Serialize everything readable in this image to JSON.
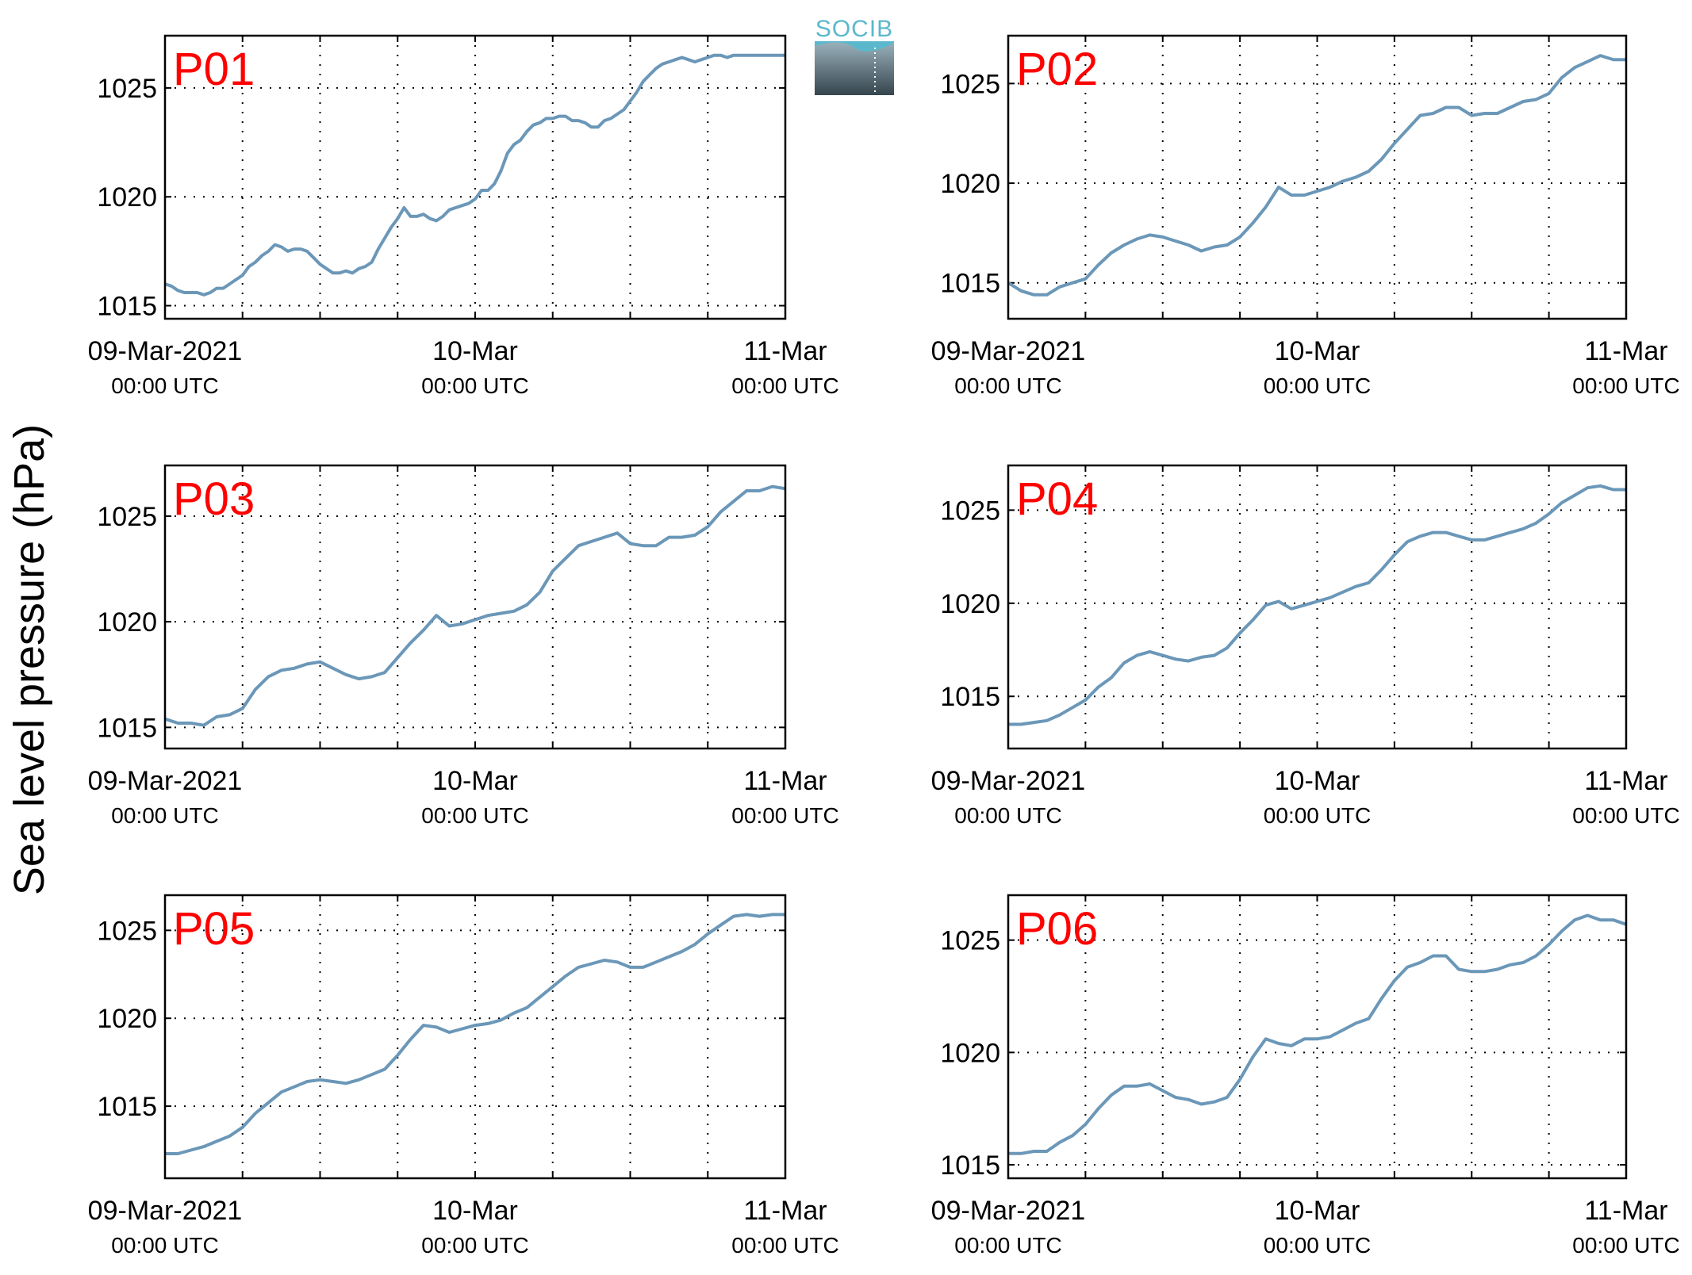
{
  "figure": {
    "ylabel": "Sea level pressure (hPa)",
    "logo_text": "SOCIB",
    "colors": {
      "line": "#6b97b8",
      "panel_label": "#ff0000",
      "grid": "#000000"
    }
  },
  "chart_data": [
    {
      "type": "line",
      "title": "P01",
      "x_ticks": [
        {
          "date": "09-Mar-2021",
          "time": "00:00 UTC"
        },
        {
          "date": "10-Mar",
          "time": "00:00 UTC"
        },
        {
          "date": "11-Mar",
          "time": "00:00 UTC"
        }
      ],
      "xlim": [
        0,
        48
      ],
      "ylim": [
        1014.4,
        1027.4
      ],
      "yticks": [
        1015,
        1020,
        1025
      ],
      "grid": true,
      "series": [
        {
          "x": [
            0,
            0.5,
            1,
            1.5,
            2,
            2.5,
            3,
            3.5,
            4,
            4.5,
            5,
            5.5,
            6,
            6.5,
            7,
            7.5,
            8,
            8.5,
            9,
            9.5,
            10,
            10.5,
            11,
            11.5,
            12,
            12.5,
            13,
            13.5,
            14,
            14.5,
            15,
            15.5,
            16,
            16.5,
            17,
            17.5,
            18,
            18.5,
            19,
            19.5,
            20,
            20.5,
            21,
            21.5,
            22,
            22.5,
            23,
            23.5,
            24,
            24.5,
            25,
            25.5,
            26,
            26.5,
            27,
            27.5,
            28,
            28.5,
            29,
            29.5,
            30,
            30.5,
            31,
            31.5,
            32,
            32.5,
            33,
            33.5,
            34,
            34.5,
            35,
            35.5,
            36,
            36.5,
            37,
            37.5,
            38,
            38.5,
            39,
            39.5,
            40,
            40.5,
            41,
            41.5,
            42,
            42.5,
            43,
            43.5,
            44,
            44.5,
            45,
            45.5,
            46,
            46.5,
            47,
            47.5,
            48
          ],
          "values": [
            1016.0,
            1015.9,
            1015.7,
            1015.6,
            1015.6,
            1015.6,
            1015.5,
            1015.6,
            1015.8,
            1015.8,
            1016.0,
            1016.2,
            1016.4,
            1016.8,
            1017.0,
            1017.3,
            1017.5,
            1017.8,
            1017.7,
            1017.5,
            1017.6,
            1017.6,
            1017.5,
            1017.2,
            1016.9,
            1016.7,
            1016.5,
            1016.5,
            1016.6,
            1016.5,
            1016.7,
            1016.8,
            1017.0,
            1017.6,
            1018.1,
            1018.6,
            1019.0,
            1019.5,
            1019.1,
            1019.1,
            1019.2,
            1019.0,
            1018.9,
            1019.1,
            1019.4,
            1019.5,
            1019.6,
            1019.7,
            1019.9,
            1020.3,
            1020.3,
            1020.6,
            1021.2,
            1022.0,
            1022.4,
            1022.6,
            1023.0,
            1023.3,
            1023.4,
            1023.6,
            1023.6,
            1023.7,
            1023.7,
            1023.5,
            1023.5,
            1023.4,
            1023.2,
            1023.2,
            1023.5,
            1023.6,
            1023.8,
            1024.0,
            1024.4,
            1024.8,
            1025.3,
            1025.6,
            1025.9,
            1026.1,
            1026.2,
            1026.3,
            1026.4,
            1026.3,
            1026.2,
            1026.3,
            1026.4,
            1026.5,
            1026.5,
            1026.4,
            1026.5,
            1026.5,
            1026.5,
            1026.5,
            1026.5,
            1026.5,
            1026.5,
            1026.5,
            1026.5
          ]
        }
      ]
    },
    {
      "type": "line",
      "title": "P02",
      "x_ticks": [
        {
          "date": "09-Mar-2021",
          "time": "00:00 UTC"
        },
        {
          "date": "10-Mar",
          "time": "00:00 UTC"
        },
        {
          "date": "11-Mar",
          "time": "00:00 UTC"
        }
      ],
      "xlim": [
        0,
        48
      ],
      "ylim": [
        1013.2,
        1027.4
      ],
      "yticks": [
        1015,
        1020,
        1025
      ],
      "grid": true,
      "series": [
        {
          "x": [
            0,
            1,
            2,
            3,
            4,
            5,
            6,
            7,
            8,
            9,
            10,
            11,
            12,
            13,
            14,
            15,
            16,
            17,
            18,
            19,
            20,
            21,
            22,
            23,
            24,
            25,
            26,
            27,
            28,
            29,
            30,
            31,
            32,
            33,
            34,
            35,
            36,
            37,
            38,
            39,
            40,
            41,
            42,
            43,
            44,
            45,
            46,
            47,
            48
          ],
          "values": [
            1015.0,
            1014.6,
            1014.4,
            1014.4,
            1014.8,
            1015.0,
            1015.2,
            1015.9,
            1016.5,
            1016.9,
            1017.2,
            1017.4,
            1017.3,
            1017.1,
            1016.9,
            1016.6,
            1016.8,
            1016.9,
            1017.3,
            1018.0,
            1018.8,
            1019.8,
            1019.4,
            1019.4,
            1019.6,
            1019.8,
            1020.1,
            1020.3,
            1020.6,
            1021.2,
            1022.0,
            1022.7,
            1023.4,
            1023.5,
            1023.8,
            1023.8,
            1023.4,
            1023.5,
            1023.5,
            1023.8,
            1024.1,
            1024.2,
            1024.5,
            1025.3,
            1025.8,
            1026.1,
            1026.4,
            1026.2,
            1026.2
          ]
        }
      ]
    },
    {
      "type": "line",
      "title": "P03",
      "x_ticks": [
        {
          "date": "09-Mar-2021",
          "time": "00:00 UTC"
        },
        {
          "date": "10-Mar",
          "time": "00:00 UTC"
        },
        {
          "date": "11-Mar",
          "time": "00:00 UTC"
        }
      ],
      "xlim": [
        0,
        48
      ],
      "ylim": [
        1014.0,
        1027.4
      ],
      "yticks": [
        1015,
        1020,
        1025
      ],
      "grid": true,
      "series": [
        {
          "x": [
            0,
            1,
            2,
            3,
            4,
            5,
            6,
            7,
            8,
            9,
            10,
            11,
            12,
            13,
            14,
            15,
            16,
            17,
            18,
            19,
            20,
            21,
            22,
            23,
            24,
            25,
            26,
            27,
            28,
            29,
            30,
            31,
            32,
            33,
            34,
            35,
            36,
            37,
            38,
            39,
            40,
            41,
            42,
            43,
            44,
            45,
            46,
            47,
            48
          ],
          "values": [
            1015.4,
            1015.2,
            1015.2,
            1015.1,
            1015.5,
            1015.6,
            1015.9,
            1016.8,
            1017.4,
            1017.7,
            1017.8,
            1018.0,
            1018.1,
            1017.8,
            1017.5,
            1017.3,
            1017.4,
            1017.6,
            1018.3,
            1019.0,
            1019.6,
            1020.3,
            1019.8,
            1019.9,
            1020.1,
            1020.3,
            1020.4,
            1020.5,
            1020.8,
            1021.4,
            1022.4,
            1023.0,
            1023.6,
            1023.8,
            1024.0,
            1024.2,
            1023.7,
            1023.6,
            1023.6,
            1024.0,
            1024.0,
            1024.1,
            1024.5,
            1025.2,
            1025.7,
            1026.2,
            1026.2,
            1026.4,
            1026.3
          ]
        }
      ]
    },
    {
      "type": "line",
      "title": "P04",
      "x_ticks": [
        {
          "date": "09-Mar-2021",
          "time": "00:00 UTC"
        },
        {
          "date": "10-Mar",
          "time": "00:00 UTC"
        },
        {
          "date": "11-Mar",
          "time": "00:00 UTC"
        }
      ],
      "xlim": [
        0,
        48
      ],
      "ylim": [
        1012.2,
        1027.4
      ],
      "yticks": [
        1015,
        1020,
        1025
      ],
      "grid": true,
      "series": [
        {
          "x": [
            0,
            1,
            2,
            3,
            4,
            5,
            6,
            7,
            8,
            9,
            10,
            11,
            12,
            13,
            14,
            15,
            16,
            17,
            18,
            19,
            20,
            21,
            22,
            23,
            24,
            25,
            26,
            27,
            28,
            29,
            30,
            31,
            32,
            33,
            34,
            35,
            36,
            37,
            38,
            39,
            40,
            41,
            42,
            43,
            44,
            45,
            46,
            47,
            48
          ],
          "values": [
            1013.5,
            1013.5,
            1013.6,
            1013.7,
            1014.0,
            1014.4,
            1014.8,
            1015.5,
            1016.0,
            1016.8,
            1017.2,
            1017.4,
            1017.2,
            1017.0,
            1016.9,
            1017.1,
            1017.2,
            1017.6,
            1018.4,
            1019.1,
            1019.9,
            1020.1,
            1019.7,
            1019.9,
            1020.1,
            1020.3,
            1020.6,
            1020.9,
            1021.1,
            1021.8,
            1022.6,
            1023.3,
            1023.6,
            1023.8,
            1023.8,
            1023.6,
            1023.4,
            1023.4,
            1023.6,
            1023.8,
            1024.0,
            1024.3,
            1024.8,
            1025.4,
            1025.8,
            1026.2,
            1026.3,
            1026.1,
            1026.1
          ]
        }
      ]
    },
    {
      "type": "line",
      "title": "P05",
      "x_ticks": [
        {
          "date": "09-Mar-2021",
          "time": "00:00 UTC"
        },
        {
          "date": "10-Mar",
          "time": "00:00 UTC"
        },
        {
          "date": "11-Mar",
          "time": "00:00 UTC"
        }
      ],
      "xlim": [
        0,
        48
      ],
      "ylim": [
        1010.9,
        1027.0
      ],
      "yticks": [
        1015,
        1020,
        1025
      ],
      "grid": true,
      "series": [
        {
          "x": [
            0,
            1,
            2,
            3,
            4,
            5,
            6,
            7,
            8,
            9,
            10,
            11,
            12,
            13,
            14,
            15,
            16,
            17,
            18,
            19,
            20,
            21,
            22,
            23,
            24,
            25,
            26,
            27,
            28,
            29,
            30,
            31,
            32,
            33,
            34,
            35,
            36,
            37,
            38,
            39,
            40,
            41,
            42,
            43,
            44,
            45,
            46,
            47,
            48
          ],
          "values": [
            1012.3,
            1012.3,
            1012.5,
            1012.7,
            1013.0,
            1013.3,
            1013.8,
            1014.6,
            1015.2,
            1015.8,
            1016.1,
            1016.4,
            1016.5,
            1016.4,
            1016.3,
            1016.5,
            1016.8,
            1017.1,
            1017.9,
            1018.8,
            1019.6,
            1019.5,
            1019.2,
            1019.4,
            1019.6,
            1019.7,
            1019.9,
            1020.3,
            1020.6,
            1021.2,
            1021.8,
            1022.4,
            1022.9,
            1023.1,
            1023.3,
            1023.2,
            1022.9,
            1022.9,
            1023.2,
            1023.5,
            1023.8,
            1024.2,
            1024.8,
            1025.3,
            1025.8,
            1025.9,
            1025.8,
            1025.9,
            1025.9
          ]
        }
      ]
    },
    {
      "type": "line",
      "title": "P06",
      "x_ticks": [
        {
          "date": "09-Mar-2021",
          "time": "00:00 UTC"
        },
        {
          "date": "10-Mar",
          "time": "00:00 UTC"
        },
        {
          "date": "11-Mar",
          "time": "00:00 UTC"
        }
      ],
      "xlim": [
        0,
        48
      ],
      "ylim": [
        1014.4,
        1027.0
      ],
      "yticks": [
        1015,
        1020,
        1025
      ],
      "grid": true,
      "series": [
        {
          "x": [
            0,
            1,
            2,
            3,
            4,
            5,
            6,
            7,
            8,
            9,
            10,
            11,
            12,
            13,
            14,
            15,
            16,
            17,
            18,
            19,
            20,
            21,
            22,
            23,
            24,
            25,
            26,
            27,
            28,
            29,
            30,
            31,
            32,
            33,
            34,
            35,
            36,
            37,
            38,
            39,
            40,
            41,
            42,
            43,
            44,
            45,
            46,
            47,
            48
          ],
          "values": [
            1015.5,
            1015.5,
            1015.6,
            1015.6,
            1016.0,
            1016.3,
            1016.8,
            1017.5,
            1018.1,
            1018.5,
            1018.5,
            1018.6,
            1018.3,
            1018.0,
            1017.9,
            1017.7,
            1017.8,
            1018.0,
            1018.8,
            1019.8,
            1020.6,
            1020.4,
            1020.3,
            1020.6,
            1020.6,
            1020.7,
            1021.0,
            1021.3,
            1021.5,
            1022.4,
            1023.2,
            1023.8,
            1024.0,
            1024.3,
            1024.3,
            1023.7,
            1023.6,
            1023.6,
            1023.7,
            1023.9,
            1024.0,
            1024.3,
            1024.8,
            1025.4,
            1025.9,
            1026.1,
            1025.9,
            1025.9,
            1025.7
          ]
        }
      ]
    }
  ]
}
